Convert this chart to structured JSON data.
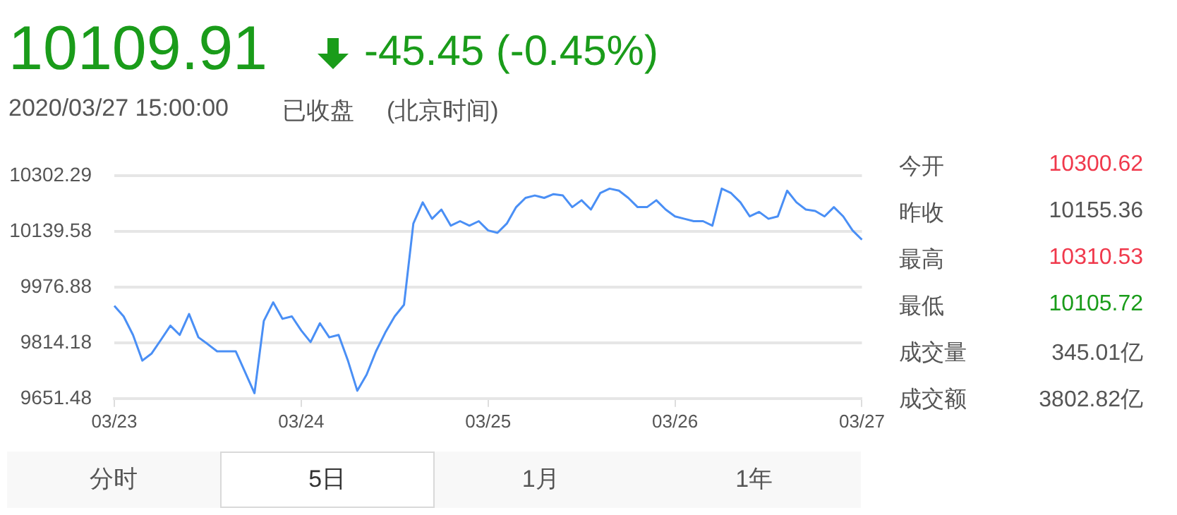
{
  "chart_data": {
    "type": "line",
    "title": "10109.91",
    "subtitle": "-45.45 (-0.45%)",
    "annotations": [
      "2020/03/27 15:00:00",
      "已收盘",
      "(北京时间)",
      "今开",
      "10300.62",
      "昨收",
      "10155.36",
      "最高",
      "10310.53",
      "最低",
      "10105.72",
      "成交量",
      "345.01亿",
      "成交额",
      "3802.82亿",
      "分时",
      "5日",
      "1月",
      "1年"
    ],
    "categories": [
      "03/23",
      null,
      null,
      null,
      null,
      null,
      null,
      null,
      null,
      null,
      null,
      null,
      null,
      null,
      null,
      null,
      null,
      null,
      null,
      null,
      "03/24",
      null,
      null,
      null,
      null,
      null,
      null,
      null,
      null,
      null,
      null,
      null,
      null,
      null,
      null,
      null,
      null,
      null,
      null,
      null,
      "03/25",
      null,
      null,
      null,
      null,
      null,
      null,
      null,
      null,
      null,
      null,
      null,
      null,
      null,
      null,
      null,
      null,
      null,
      null,
      null,
      "03/26",
      null,
      null,
      null,
      null,
      null,
      null,
      null,
      null,
      null,
      null,
      null,
      null,
      null,
      null,
      null,
      null,
      null,
      null,
      null,
      "03/27"
    ],
    "series": [
      {
        "color": "#4a8ff5",
        "values": [
          9922,
          9891,
          9837,
          9762,
          9783,
          9823,
          9864,
          9837,
          9898,
          9830,
          9810,
          9789,
          9789,
          9789,
          9728,
          9667,
          9878,
          9932,
          9884,
          9891,
          9850,
          9816,
          9871,
          9830,
          9837,
          9762,
          9674,
          9721,
          9789,
          9844,
          9891,
          9925,
          10162,
          10224,
          10176,
          10203,
          10156,
          10169,
          10156,
          10169,
          10142,
          10135,
          10162,
          10210,
          10237,
          10244,
          10237,
          10248,
          10244,
          10210,
          10230,
          10203,
          10251,
          10264,
          10258,
          10237,
          10210,
          10210,
          10230,
          10203,
          10183,
          10176,
          10169,
          10169,
          10156,
          10264,
          10251,
          10224,
          10183,
          10196,
          10176,
          10183,
          10258,
          10224,
          10203,
          10199,
          10183,
          10210,
          10183,
          10142,
          10115
        ]
      }
    ],
    "ylim": [
      9651.48,
      10302.29
    ],
    "yticks": [
      9651.48,
      9814.18,
      9976.88,
      10139.58,
      10302.29
    ],
    "grid": "y",
    "legend": false,
    "marker": "none",
    "line_style": "solid"
  }
}
